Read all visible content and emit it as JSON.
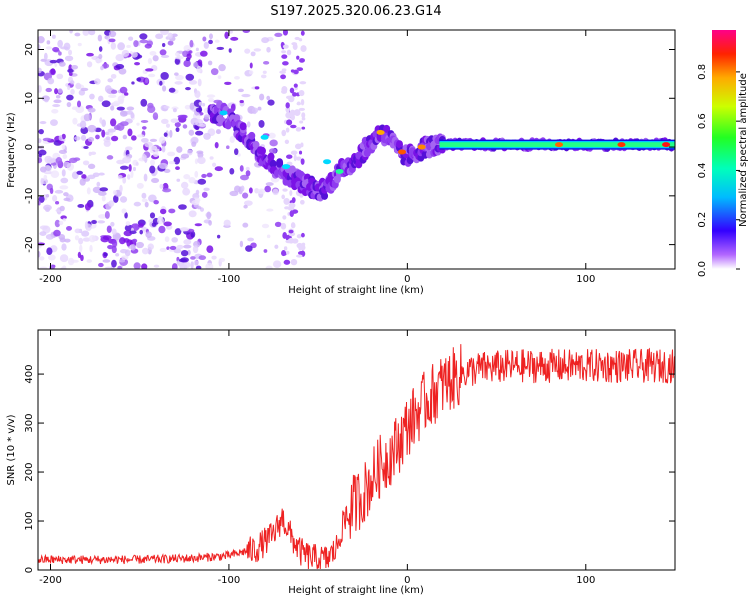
{
  "title": "S197.2025.320.06.23.G14",
  "chart_data": [
    {
      "type": "heatmap",
      "xlabel": "Height of straight line (km)",
      "ylabel": "Frequency (Hz)",
      "xlim": [
        -207,
        150
      ],
      "ylim": [
        -25,
        24
      ],
      "xticks": [
        -200,
        -100,
        0,
        100
      ],
      "yticks": [
        -20,
        -10,
        0,
        10,
        20
      ],
      "colorbar": {
        "label": "Normalized spectral amplitude",
        "range": [
          0,
          0.97
        ],
        "ticks": [
          0.0,
          0.2,
          0.4,
          0.6,
          0.8
        ]
      },
      "ridge": {
        "x": [
          -105,
          -100,
          -95,
          -90,
          -85,
          -80,
          -75,
          -70,
          -65,
          -60,
          -55,
          -50,
          -45,
          -40,
          -35,
          -30,
          -25,
          -20,
          -15,
          -10,
          -5,
          0,
          5,
          10,
          15,
          20,
          30,
          50,
          100,
          150
        ],
        "freq": [
          7,
          6,
          4,
          2,
          0,
          -2,
          -4,
          -5,
          -6,
          -7,
          -8,
          -9,
          -8,
          -6,
          -4,
          -3,
          -1,
          1,
          3,
          2,
          -1,
          -2,
          -1,
          0,
          0.3,
          0.3,
          0.5,
          0.5,
          0.5,
          0.5
        ]
      }
    },
    {
      "type": "line",
      "xlabel": "Height of straight line (km)",
      "ylabel": "SNR (10 * v/v)",
      "xlim": [
        -207,
        150
      ],
      "ylim": [
        0,
        490
      ],
      "xticks": [
        -200,
        -100,
        0,
        100
      ],
      "yticks": [
        0,
        100,
        200,
        300,
        400
      ],
      "series_color": "#ee2222",
      "trend": {
        "x": [
          -207,
          -150,
          -120,
          -100,
          -85,
          -75,
          -70,
          -65,
          -60,
          -55,
          -50,
          -45,
          -40,
          -35,
          -30,
          -25,
          -20,
          -15,
          -10,
          -5,
          0,
          10,
          20,
          30,
          40,
          60,
          100,
          150
        ],
        "snr": [
          22,
          22,
          25,
          30,
          45,
          75,
          110,
          70,
          40,
          30,
          25,
          25,
          45,
          110,
          140,
          160,
          190,
          220,
          240,
          265,
          300,
          350,
          385,
          405,
          415,
          420,
          420,
          420
        ]
      }
    }
  ]
}
